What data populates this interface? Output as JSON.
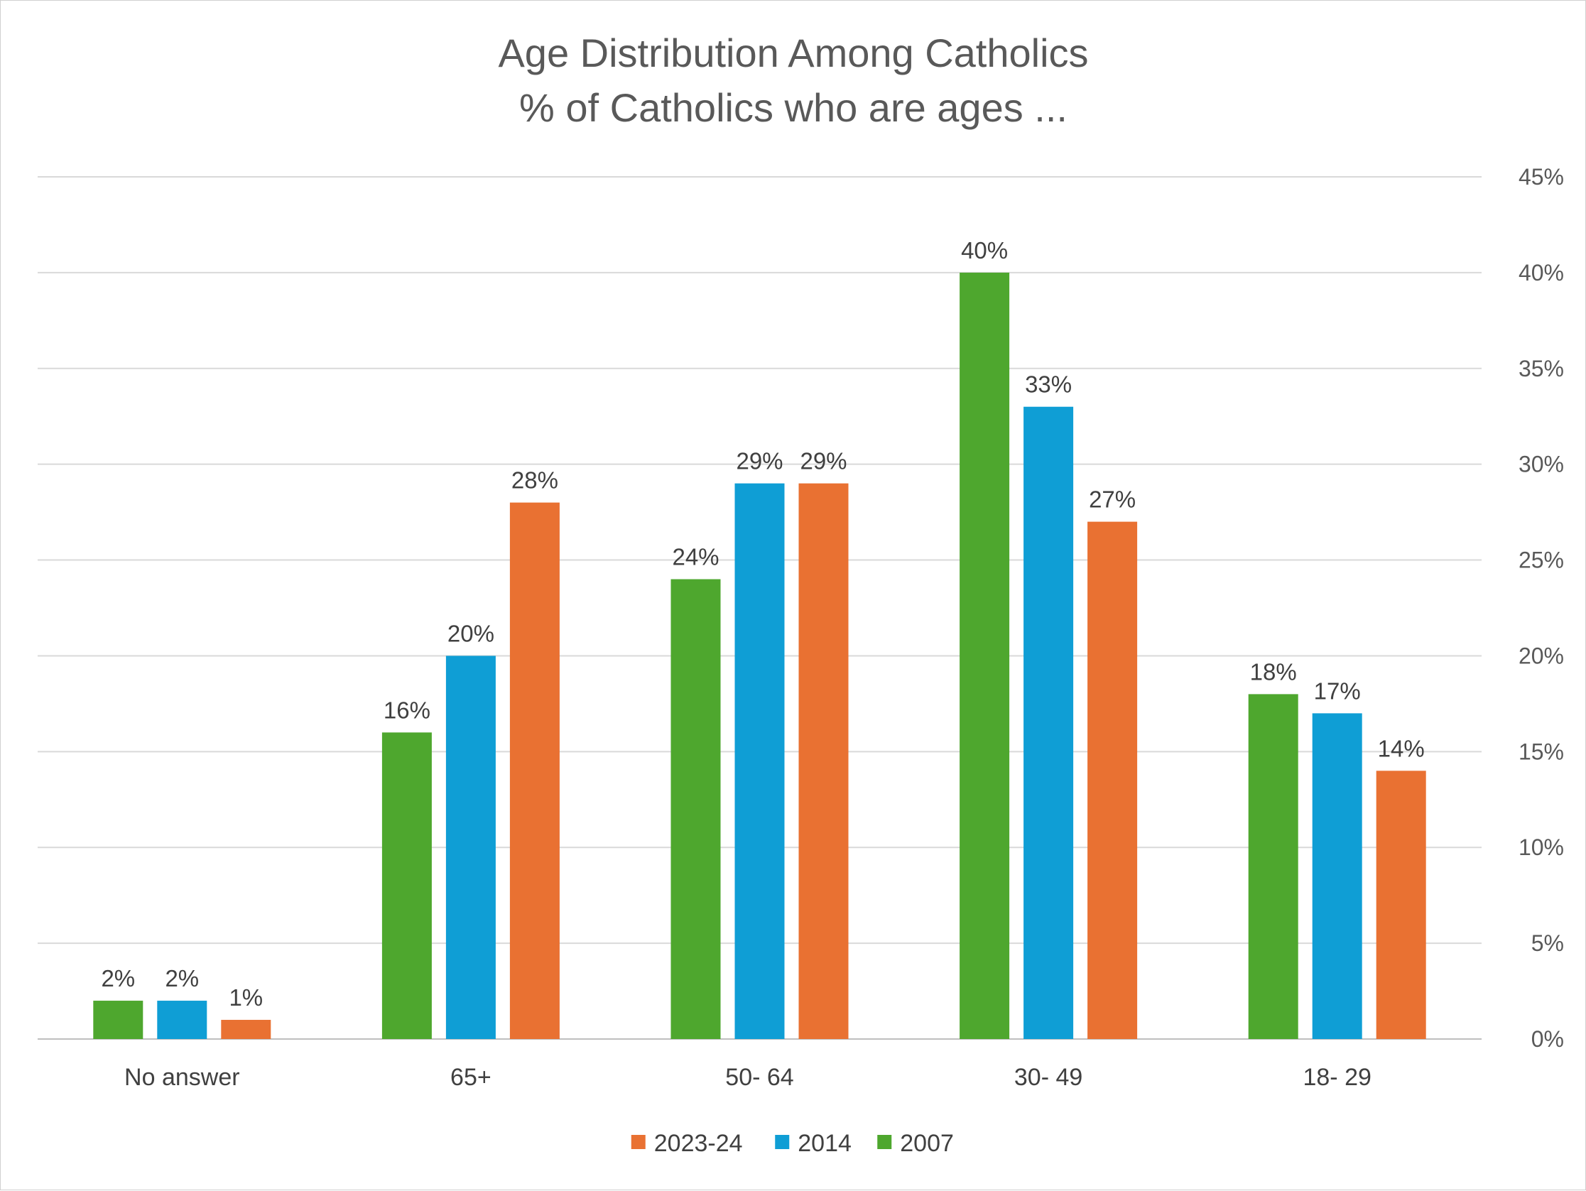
{
  "chart_data": {
    "type": "bar",
    "title": "Age Distribution Among Catholics",
    "subtitle": "% of Catholics who are ages ...",
    "categories": [
      "No answer",
      "65+",
      "50- 64",
      "30- 49",
      "18- 29"
    ],
    "series": [
      {
        "name": "2007",
        "color": "#4ea72e",
        "values": [
          2,
          16,
          24,
          40,
          18
        ],
        "labels": [
          "2%",
          "16%",
          "24%",
          "40%",
          "18%"
        ]
      },
      {
        "name": "2014",
        "color": "#0f9ed5",
        "values": [
          2,
          20,
          29,
          33,
          17
        ],
        "labels": [
          "2%",
          "20%",
          "29%",
          "33%",
          "17%"
        ]
      },
      {
        "name": "2023-24",
        "color": "#e97132",
        "values": [
          1,
          28,
          29,
          27,
          14
        ],
        "labels": [
          "1%",
          "28%",
          "29%",
          "27%",
          "14%"
        ]
      }
    ],
    "legend_order": [
      "2023-24",
      "2014",
      "2007"
    ],
    "y_ticks": [
      "0%",
      "5%",
      "10%",
      "15%",
      "20%",
      "25%",
      "30%",
      "35%",
      "40%",
      "45%"
    ],
    "ylim": [
      0,
      45
    ],
    "y_axis_side": "right",
    "grid": true,
    "legend_position": "bottom"
  }
}
